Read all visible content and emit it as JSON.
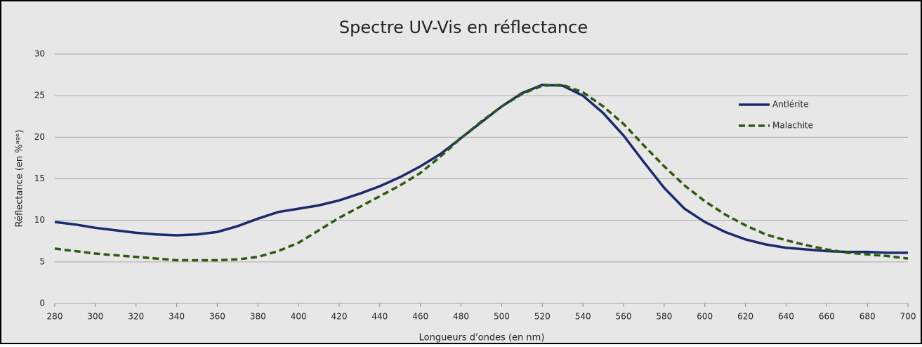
{
  "chart_data": {
    "type": "line",
    "title": "Spectre UV-Vis en réflectance",
    "xlabel": "Longueurs d'ondes (en nm)",
    "ylabel": "Réflectance (en %ᵃᵍᵉ)",
    "x": [
      280,
      290,
      300,
      310,
      320,
      330,
      340,
      350,
      360,
      370,
      380,
      390,
      400,
      410,
      420,
      430,
      440,
      450,
      460,
      470,
      480,
      490,
      500,
      510,
      520,
      530,
      540,
      550,
      560,
      570,
      580,
      590,
      600,
      610,
      620,
      630,
      640,
      650,
      660,
      670,
      680,
      690,
      700
    ],
    "series": [
      {
        "name": "Antlérite",
        "color": "#1b2a6b",
        "style": "solid",
        "values": [
          9.8,
          9.5,
          9.1,
          8.8,
          8.5,
          8.3,
          8.2,
          8.3,
          8.6,
          9.3,
          10.2,
          11.0,
          11.4,
          11.8,
          12.4,
          13.2,
          14.1,
          15.2,
          16.5,
          18.0,
          19.9,
          21.8,
          23.7,
          25.3,
          26.3,
          26.2,
          25.0,
          22.9,
          20.2,
          17.0,
          13.9,
          11.4,
          9.8,
          8.6,
          7.7,
          7.1,
          6.7,
          6.5,
          6.3,
          6.2,
          6.2,
          6.1,
          6.1
        ]
      },
      {
        "name": "Malachite",
        "color": "#2d5a10",
        "style": "dashed",
        "values": [
          6.6,
          6.3,
          6.0,
          5.8,
          5.6,
          5.4,
          5.2,
          5.2,
          5.2,
          5.3,
          5.6,
          6.3,
          7.3,
          8.8,
          10.3,
          11.6,
          12.9,
          14.2,
          15.7,
          17.7,
          19.9,
          21.9,
          23.7,
          25.2,
          26.2,
          26.3,
          25.4,
          23.7,
          21.6,
          19.0,
          16.5,
          14.2,
          12.3,
          10.7,
          9.4,
          8.3,
          7.6,
          7.0,
          6.5,
          6.1,
          5.9,
          5.7,
          5.4
        ]
      }
    ],
    "xlim": [
      280,
      700
    ],
    "xticks": [
      280,
      300,
      320,
      340,
      360,
      380,
      400,
      420,
      440,
      460,
      480,
      500,
      520,
      540,
      560,
      580,
      600,
      620,
      640,
      660,
      680,
      700
    ],
    "ylim": [
      0,
      30
    ],
    "yticks": [
      0,
      5,
      10,
      15,
      20,
      25,
      30
    ],
    "grid": true,
    "legend": "upper right"
  }
}
